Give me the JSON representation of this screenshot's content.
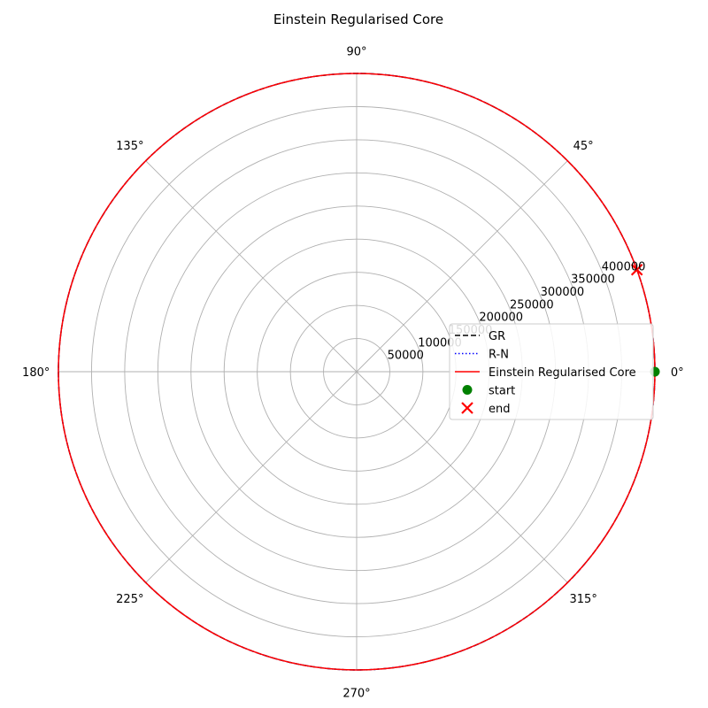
{
  "chart_data": {
    "type": "line",
    "projection": "polar",
    "title": "Einstein Regularised Core",
    "theta_ticks": [
      "0°",
      "45°",
      "90°",
      "135°",
      "180°",
      "225°",
      "270°",
      "315°"
    ],
    "theta_tick_degrees": [
      0,
      45,
      90,
      135,
      180,
      225,
      270,
      315
    ],
    "r_ticks": [
      50000,
      100000,
      150000,
      200000,
      250000,
      300000,
      350000,
      400000
    ],
    "r_tick_labels": [
      "50000",
      "100000",
      "150000",
      "200000",
      "250000",
      "300000",
      "350000",
      "400000"
    ],
    "r_label_angle_deg": 22.5,
    "rlim": [
      0,
      450000
    ],
    "grid": true,
    "legend_position": "center-right",
    "series": [
      {
        "name": "GR",
        "style": "dashed",
        "color": "#000000",
        "r": 450000,
        "theta_deg": [
          0,
          360
        ]
      },
      {
        "name": "R-N",
        "style": "dotted",
        "color": "#0000ff",
        "r": 450000,
        "theta_deg": [
          0,
          360
        ]
      },
      {
        "name": "Einstein Regularised Core",
        "style": "solid",
        "color": "#ff0000",
        "r": 450000,
        "theta_deg": [
          0,
          360
        ]
      }
    ],
    "markers": [
      {
        "name": "start",
        "shape": "circle",
        "color": "#008000",
        "r": 450000,
        "theta_deg": 0
      },
      {
        "name": "end",
        "shape": "x",
        "color": "#ff0000",
        "r": 450000,
        "theta_deg": 20
      }
    ]
  }
}
